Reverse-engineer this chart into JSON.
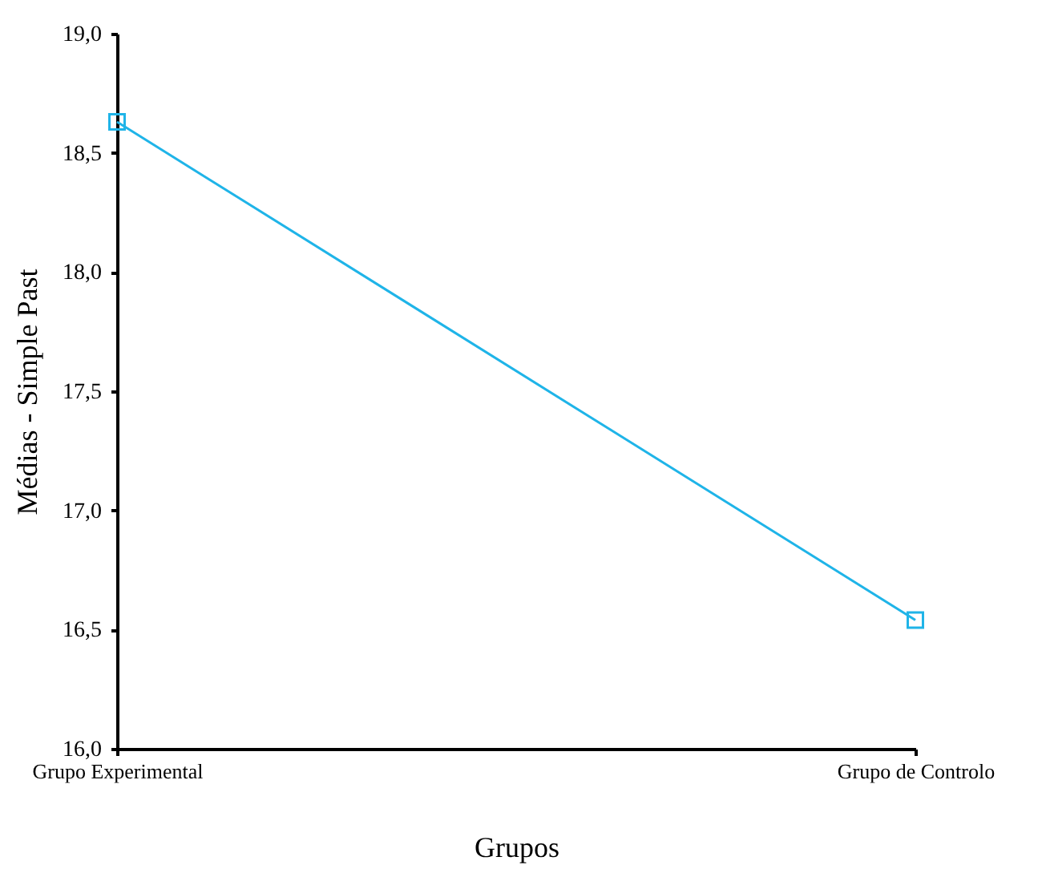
{
  "chart_data": {
    "type": "line",
    "xlabel": "Grupos",
    "ylabel": "Médias - Simple Past",
    "categories": [
      "Grupo Experimental",
      "Grupo de Controlo"
    ],
    "series": [
      {
        "color": "#1fb4e8",
        "values": [
          18.63,
          16.54
        ]
      }
    ],
    "ylim": [
      16.0,
      19.0
    ],
    "yticks": [
      {
        "value": 16.0,
        "label": "16,0"
      },
      {
        "value": 16.5,
        "label": "16,5"
      },
      {
        "value": 17.0,
        "label": "17,0"
      },
      {
        "value": 17.5,
        "label": "17,5"
      },
      {
        "value": 18.0,
        "label": "18,0"
      },
      {
        "value": 18.5,
        "label": "18,5"
      },
      {
        "value": 19.0,
        "label": "19,0"
      }
    ],
    "grid": false,
    "legend": false,
    "marker": "square",
    "line_style": "solid"
  }
}
